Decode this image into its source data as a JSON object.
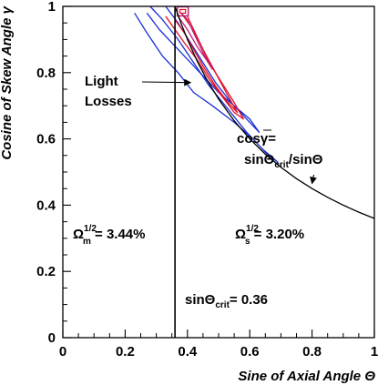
{
  "chart_data": {
    "type": "line",
    "xlabel": "Sine of Axial Angle Θ",
    "ylabel": "Cosine of Skew Angle γ",
    "xlim": [
      0,
      1
    ],
    "ylim": [
      0,
      1
    ],
    "xticks": [
      0,
      0.2,
      0.4,
      0.6,
      0.8,
      1
    ],
    "yticks": [
      0,
      0.2,
      0.4,
      0.6,
      0.8,
      1
    ],
    "xtick_labels": [
      "0",
      "0.2",
      "0.4",
      "0.6",
      "0.8",
      "1"
    ],
    "ytick_labels": [
      "0",
      "0.2",
      "0.4",
      "0.6",
      "0.8",
      "1"
    ],
    "grid": false,
    "colors": {
      "curve": "#000000",
      "contour_blue": "#1a2fd6",
      "contour_red": "#e0102a",
      "contour_magenta": "#c0207a"
    },
    "critical_angle": {
      "sin_theta_crit": 0.36,
      "curve": "cos γ = sinΘcrit / sinΘ"
    },
    "curve_x": [
      0.36,
      0.38,
      0.4,
      0.43,
      0.46,
      0.5,
      0.55,
      0.6,
      0.65,
      0.7,
      0.75,
      0.8,
      0.85,
      0.9,
      0.95,
      1.0
    ],
    "series": [
      {
        "color": "blue",
        "points": [
          [
            0.23,
            0.98
          ],
          [
            0.27,
            0.92
          ],
          [
            0.32,
            0.85
          ],
          [
            0.37,
            0.8
          ],
          [
            0.42,
            0.74
          ],
          [
            0.48,
            0.7
          ],
          [
            0.55,
            0.65
          ],
          [
            0.61,
            0.6
          ],
          [
            0.66,
            0.55
          ],
          [
            0.69,
            0.53
          ],
          [
            0.64,
            0.57
          ],
          [
            0.59,
            0.62
          ],
          [
            0.53,
            0.69
          ],
          [
            0.47,
            0.76
          ],
          [
            0.42,
            0.83
          ],
          [
            0.37,
            0.9
          ],
          [
            0.32,
            0.96
          ],
          [
            0.28,
            1.0
          ]
        ]
      },
      {
        "color": "blue",
        "points": [
          [
            0.27,
            0.98
          ],
          [
            0.31,
            0.93
          ],
          [
            0.36,
            0.88
          ],
          [
            0.4,
            0.84
          ],
          [
            0.45,
            0.79
          ],
          [
            0.5,
            0.74
          ],
          [
            0.55,
            0.7
          ],
          [
            0.6,
            0.66
          ],
          [
            0.63,
            0.62
          ],
          [
            0.59,
            0.66
          ],
          [
            0.54,
            0.71
          ],
          [
            0.49,
            0.77
          ],
          [
            0.45,
            0.83
          ],
          [
            0.41,
            0.89
          ],
          [
            0.37,
            0.95
          ],
          [
            0.33,
            1.0
          ]
        ]
      },
      {
        "color": "red",
        "points": [
          [
            0.33,
            0.97
          ],
          [
            0.36,
            0.93
          ],
          [
            0.39,
            0.89
          ],
          [
            0.43,
            0.84
          ],
          [
            0.47,
            0.78
          ],
          [
            0.51,
            0.73
          ],
          [
            0.55,
            0.68
          ],
          [
            0.58,
            0.66
          ],
          [
            0.55,
            0.71
          ],
          [
            0.51,
            0.77
          ],
          [
            0.47,
            0.83
          ],
          [
            0.44,
            0.89
          ],
          [
            0.41,
            0.94
          ],
          [
            0.38,
            0.98
          ]
        ]
      },
      {
        "color": "red",
        "points": [
          [
            0.36,
            0.96
          ],
          [
            0.39,
            0.92
          ],
          [
            0.42,
            0.87
          ],
          [
            0.45,
            0.82
          ],
          [
            0.49,
            0.76
          ],
          [
            0.53,
            0.71
          ],
          [
            0.56,
            0.68
          ],
          [
            0.53,
            0.73
          ],
          [
            0.49,
            0.8
          ],
          [
            0.45,
            0.87
          ],
          [
            0.42,
            0.93
          ],
          [
            0.4,
            0.97
          ]
        ]
      },
      {
        "color": "magenta",
        "points": [
          [
            0.37,
            0.97
          ],
          [
            0.4,
            0.93
          ],
          [
            0.43,
            0.88
          ],
          [
            0.46,
            0.84
          ],
          [
            0.48,
            0.81
          ],
          [
            0.45,
            0.86
          ],
          [
            0.42,
            0.92
          ],
          [
            0.4,
            0.96
          ],
          [
            0.38,
            0.98
          ]
        ]
      }
    ],
    "annotations": {
      "light_losses_line1": "Light",
      "light_losses_line2": "Losses",
      "light_losses_arrow_target": [
        0.41,
        0.77
      ],
      "formula_lhs": "cos",
      "formula_gamma": "γ",
      "formula_eq": "=",
      "formula_num_pre": "sinΘ",
      "formula_num_sub": "crit",
      "formula_den": "/sinΘ",
      "formula_arrow_target": [
        0.8,
        0.46
      ],
      "omega_m_base": "Ω",
      "omega_m_sup": "1/2",
      "omega_m_sub": "m",
      "omega_m_value": " = 3.44%",
      "omega_s_base": "Ω",
      "omega_s_sup": "1/2",
      "omega_s_sub": "s",
      "omega_s_value": " = 3.20%",
      "crit_pre": "sinΘ",
      "crit_sub": "crit",
      "crit_value": "= 0.36"
    }
  }
}
